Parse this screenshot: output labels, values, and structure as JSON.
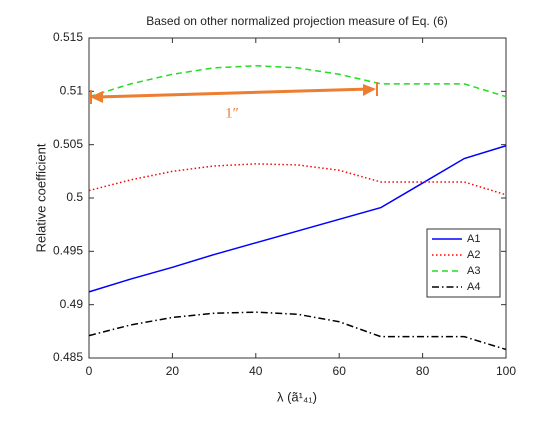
{
  "chart_data": {
    "type": "line",
    "title": "Based on other normalized projection measure of Eq. (6)",
    "xlabel": "λ (ã¹₄₁)",
    "ylabel": "Relative coefficient",
    "x": [
      0,
      10,
      20,
      30,
      40,
      50,
      60,
      70,
      80,
      90,
      100
    ],
    "series": [
      {
        "name": "A1",
        "color": "#0000ff",
        "style": "solid",
        "values": [
          0.4912,
          0.4924,
          0.4935,
          0.4947,
          0.4958,
          0.4969,
          0.498,
          0.4991,
          0.5014,
          0.5037,
          0.5049
        ]
      },
      {
        "name": "A2",
        "color": "#ff0000",
        "style": "dotted",
        "values": [
          0.5007,
          0.5017,
          0.5025,
          0.503,
          0.5032,
          0.5031,
          0.5026,
          0.5015,
          0.5015,
          0.5015,
          0.5003
        ]
      },
      {
        "name": "A3",
        "color": "#22dd22",
        "style": "dashed",
        "values": [
          0.5095,
          0.5107,
          0.5116,
          0.5122,
          0.5124,
          0.5122,
          0.5116,
          0.5107,
          0.5107,
          0.5107,
          0.5095
        ]
      },
      {
        "name": "A4",
        "color": "#000000",
        "style": "dashdot",
        "values": [
          0.4871,
          0.4881,
          0.4888,
          0.4892,
          0.4893,
          0.4891,
          0.4884,
          0.487,
          0.487,
          0.487,
          0.4858
        ]
      }
    ],
    "xlim": [
      0,
      100
    ],
    "xticks": [
      0,
      20,
      40,
      60,
      80,
      100
    ],
    "ylim": [
      0.485,
      0.515
    ],
    "yticks": [
      0.485,
      0.49,
      0.495,
      0.5,
      0.505,
      0.51,
      0.515
    ],
    "legend": "lower right",
    "annotation": "1″"
  }
}
